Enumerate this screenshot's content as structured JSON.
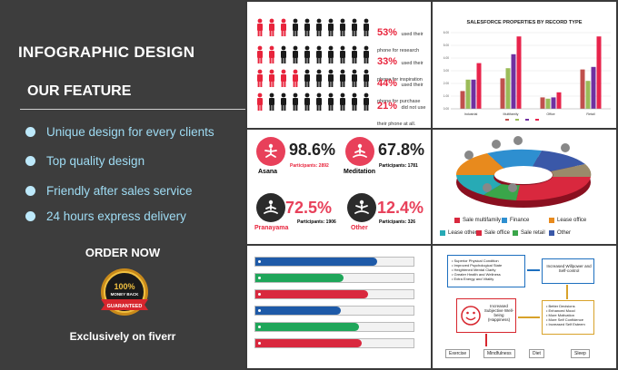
{
  "promo": {
    "title": "INFOGRAPHIC  DESIGN",
    "feature_heading": "OUR FEATURE",
    "features": [
      "Unique design for every clients",
      "Top quality design",
      "Friendly after sales service",
      "24 hours express delivery"
    ],
    "order_now": "ORDER NOW",
    "badge": {
      "top": "100%",
      "middle": "MONEY BACK",
      "ribbon": "GUARANTEED"
    },
    "footer": "Exclusively on fiverr"
  },
  "people_stats": [
    {
      "pct": "53%",
      "text": "used their phone for research",
      "red_count": 3
    },
    {
      "pct": "33%",
      "text": "used their phone for inspiration",
      "red_count": 2
    },
    {
      "pct": "44%",
      "text": "used their phone for purchase",
      "red_count": 4
    },
    {
      "pct": "21%",
      "text": "did not use their phone at all.",
      "red_count": 1
    }
  ],
  "chart_data": {
    "type": "bar",
    "title": "SALESFORCE PROPERTIES BY RECORD TYPE",
    "categories": [
      "Industrial",
      "Multifamily",
      "Office",
      "Retail"
    ],
    "series": [
      {
        "color": "#c0504d",
        "values": [
          1.4,
          2.4,
          0.9,
          3.1
        ]
      },
      {
        "color": "#9bbb59",
        "values": [
          2.3,
          3.2,
          0.8,
          2.2
        ]
      },
      {
        "color": "#7030a0",
        "values": [
          2.3,
          4.3,
          0.9,
          3.3
        ]
      },
      {
        "color": "#e8244c",
        "values": [
          3.6,
          5.7,
          1.3,
          5.7
        ]
      }
    ],
    "ylim": [
      0,
      6
    ],
    "yticks": [
      "0.00",
      "1.00",
      "2.00",
      "3.00",
      "4.00",
      "5.00",
      "6.00"
    ]
  },
  "activities": [
    {
      "pct": "98.6%",
      "label": "Asana",
      "participants": "Participants: 2892",
      "style": "red"
    },
    {
      "pct": "67.8%",
      "label": "Meditation",
      "participants": "Participants: 1781",
      "style": "red"
    },
    {
      "pct": "72.5%",
      "label": "Pranayama",
      "participants": "Participants: 1906",
      "style": "dark"
    },
    {
      "pct": "12.4%",
      "label": "Other",
      "participants": "Participants: 326",
      "style": "dark"
    }
  ],
  "donut_legend": [
    {
      "label": "Sale multifamily",
      "color": "#d9283e"
    },
    {
      "label": "Finance",
      "color": "#2e8fd0"
    },
    {
      "label": "Lease office",
      "color": "#e88a1d"
    },
    {
      "label": "Lease other",
      "color": "#27aab5"
    },
    {
      "label": "Sale office",
      "color": "#d9283e"
    },
    {
      "label": "Sale retail",
      "color": "#3aa64a"
    },
    {
      "label": "Other",
      "color": "#3a58a8"
    }
  ],
  "list_rows": [
    {
      "color": "#1e5aa8",
      "width": 0.72
    },
    {
      "color": "#1fa65a",
      "width": 0.5
    },
    {
      "color": "#d9283e",
      "width": 0.66
    },
    {
      "color": "#1e5aa8",
      "width": 0.48
    },
    {
      "color": "#1fa65a",
      "width": 0.6
    },
    {
      "color": "#d9283e",
      "width": 0.62
    }
  ],
  "flow": {
    "top_list": [
      "Superior Physical Condition",
      "Improved Psychological State",
      "Heightened Mental Clarity",
      "Greater Health and Wellness",
      "Extra Energy and Vitality"
    ],
    "willpower": "Increased Willpower and Self-control",
    "right_list": [
      "Better Decisions",
      "Enhanced Mood",
      "More Motivation",
      "More Self Confidence",
      "Increased Self Esteem"
    ],
    "happiness": "Increased Subjective Well-being (Happiness)",
    "steps": [
      "Exercise",
      "Mindfulness",
      "Diet",
      "Sleep"
    ]
  }
}
